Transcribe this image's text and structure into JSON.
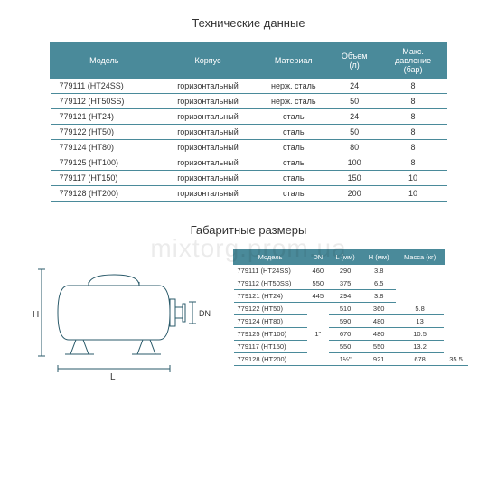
{
  "watermark": "mixtorg.prom.ua",
  "spec": {
    "title": "Технические данные",
    "columns": [
      "Модель",
      "Корпус",
      "Материал",
      "Объем (л)",
      "Макс. давление (бар)"
    ],
    "col_widths": [
      "120px",
      "110px",
      "80px",
      "55px",
      "75px"
    ],
    "rows": [
      [
        "779111 (HT24SS)",
        "горизонтальный",
        "нерж. сталь",
        "24",
        "8"
      ],
      [
        "779112 (HT50SS)",
        "горизонтальный",
        "нерж. сталь",
        "50",
        "8"
      ],
      [
        "779121 (HT24)",
        "горизонтальный",
        "сталь",
        "24",
        "8"
      ],
      [
        "779122 (HT50)",
        "горизонтальный",
        "сталь",
        "50",
        "8"
      ],
      [
        "779124 (HT80)",
        "горизонтальный",
        "сталь",
        "80",
        "8"
      ],
      [
        "779125 (HT100)",
        "горизонтальный",
        "сталь",
        "100",
        "8"
      ],
      [
        "779117 (HT150)",
        "горизонтальный",
        "сталь",
        "150",
        "10"
      ],
      [
        "779128 (HT200)",
        "горизонтальный",
        "сталь",
        "200",
        "10"
      ]
    ]
  },
  "dims": {
    "title": "Габаритные размеры",
    "columns": [
      "Модель",
      "DN",
      "L (мм)",
      "H (мм)",
      "Масса (кг)"
    ],
    "rows": [
      [
        "779111 (HT24SS)",
        "",
        "460",
        "290",
        "3.8"
      ],
      [
        "779112 (HT50SS)",
        "",
        "550",
        "375",
        "6.5"
      ],
      [
        "779121 (HT24)",
        "",
        "445",
        "294",
        "3.8"
      ],
      [
        "779122 (HT50)",
        "1\"",
        "510",
        "360",
        "5.8"
      ],
      [
        "779124 (HT80)",
        "",
        "590",
        "480",
        "13"
      ],
      [
        "779125 (HT100)",
        "",
        "670",
        "480",
        "10.5"
      ],
      [
        "779117 (HT150)",
        "",
        "550",
        "550",
        "13.2"
      ],
      [
        "779128 (HT200)",
        "1½\"",
        "921",
        "678",
        "35.5"
      ]
    ],
    "dn_rowspans": [
      0,
      0,
      0,
      7,
      0,
      0,
      0,
      1
    ]
  },
  "diagram": {
    "labels": {
      "H": "H",
      "L": "L",
      "DN": "DN"
    },
    "stroke": "#2a5a6a"
  }
}
